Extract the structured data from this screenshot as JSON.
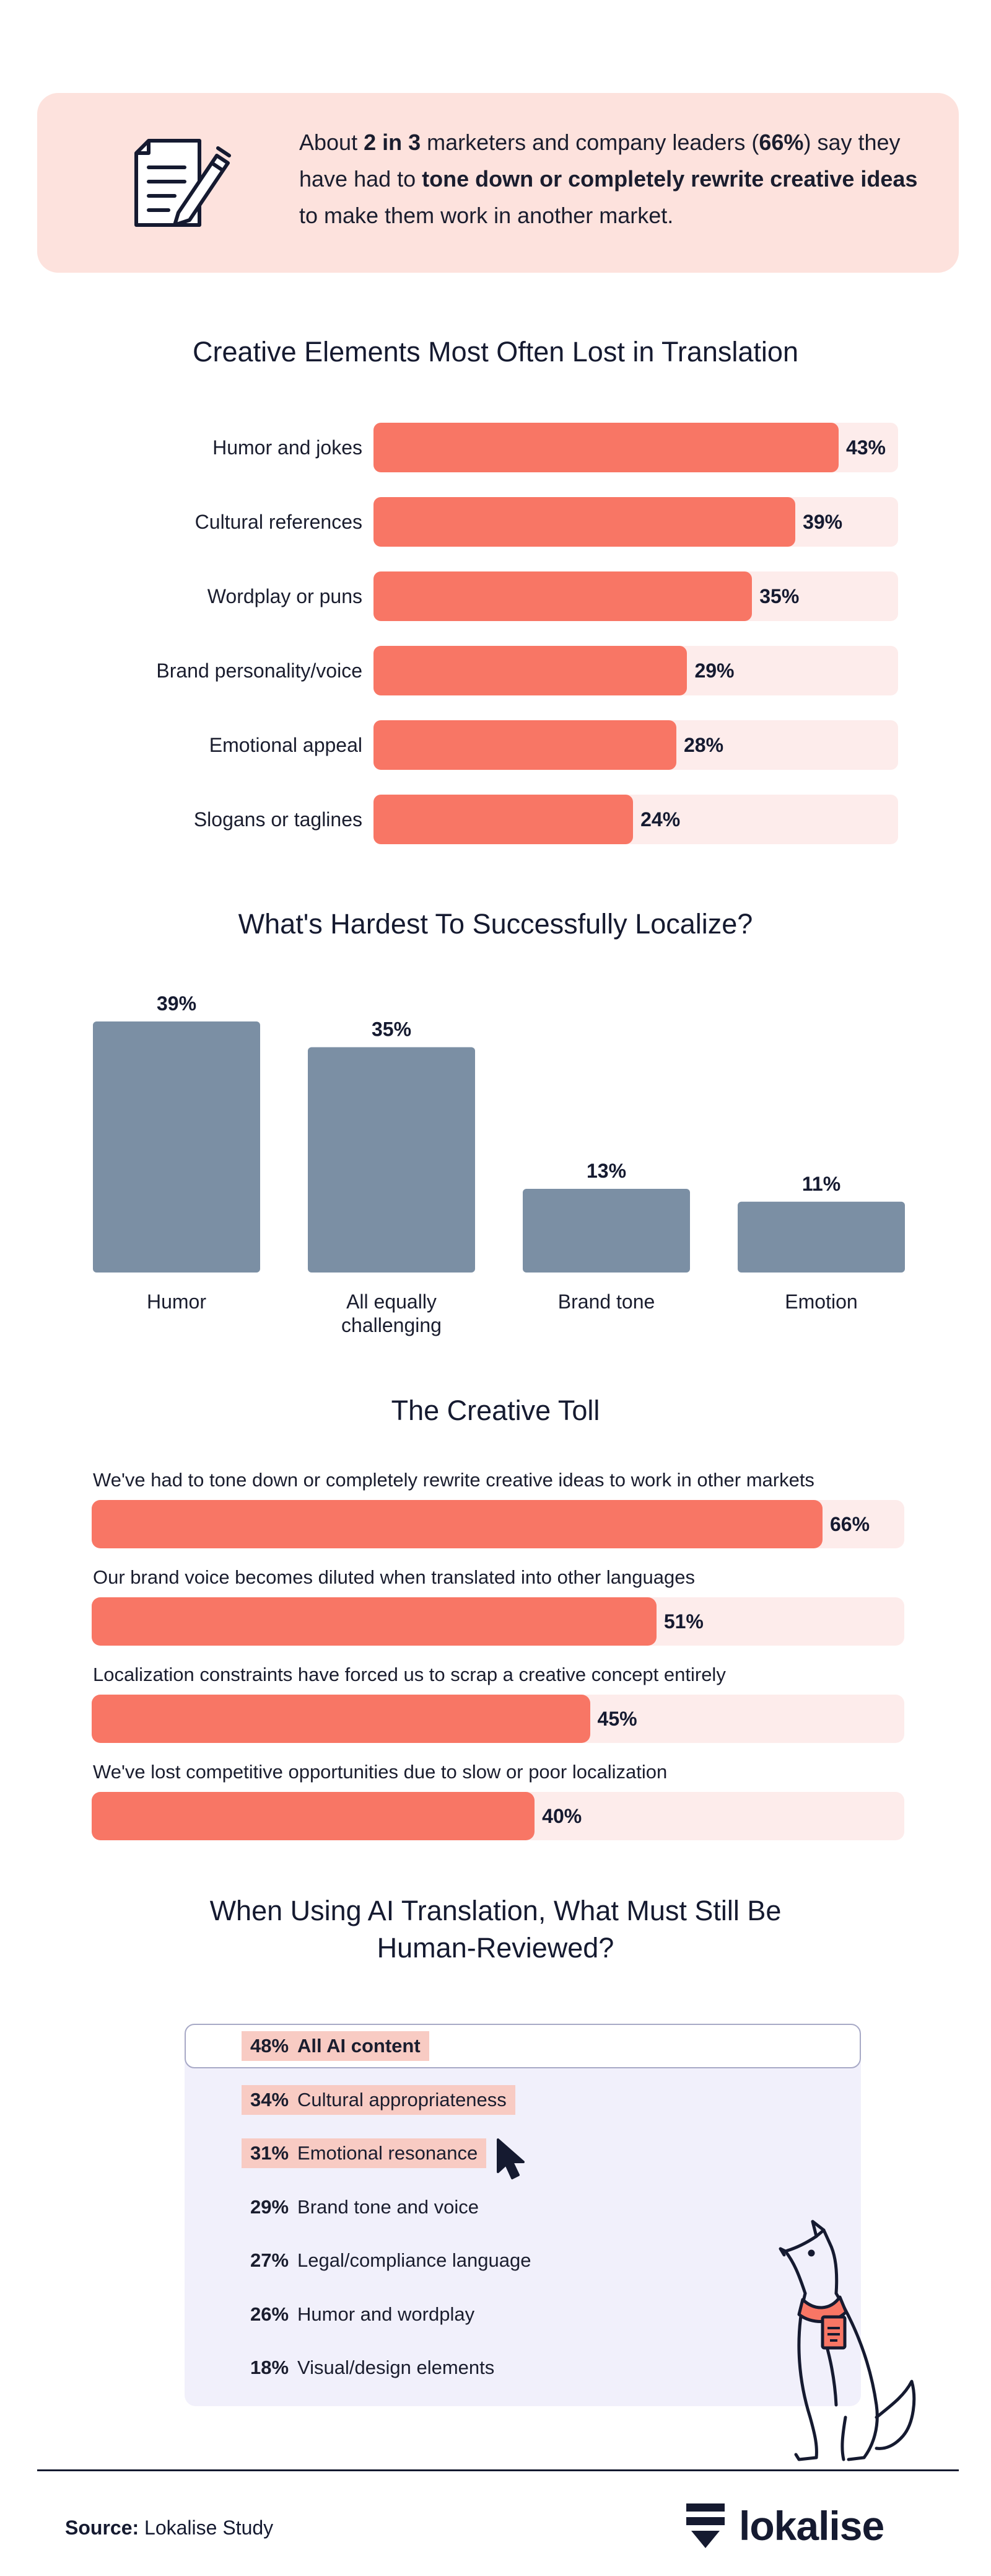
{
  "callout": {
    "t1": "About ",
    "t2": "2 in 3",
    "t3": " marketers and company leaders (",
    "t4": "66%",
    "t5": ") say they have had to ",
    "t6": "tone down or completely rewrite creative ideas",
    "t7": " to make them work in another market.",
    "icon": "document-pen-icon"
  },
  "chart_data": [
    {
      "type": "bar",
      "orientation": "horizontal",
      "title": "Creative Elements Most Often Lost in Translation",
      "categories": [
        "Humor and jokes",
        "Cultural references",
        "Wordplay or puns",
        "Brand personality/voice",
        "Emotional appeal",
        "Slogans or taglines"
      ],
      "values": [
        43,
        39,
        35,
        29,
        28,
        24
      ],
      "value_labels": [
        "43%",
        "39%",
        "35%",
        "29%",
        "28%",
        "24%"
      ],
      "xlim": [
        0,
        50
      ],
      "unit": "%"
    },
    {
      "type": "bar",
      "orientation": "vertical",
      "title": "What's Hardest To Successfully Localize?",
      "categories": [
        "Humor",
        "All equally challenging",
        "Brand tone",
        "Emotion"
      ],
      "values": [
        39,
        35,
        13,
        11
      ],
      "value_labels": [
        "39%",
        "35%",
        "13%",
        "11%"
      ],
      "ylim": [
        0,
        40
      ],
      "unit": "%"
    },
    {
      "type": "bar",
      "orientation": "horizontal",
      "title": "The Creative Toll",
      "categories": [
        "We've had to tone down or completely rewrite creative ideas to work in other markets",
        "Our brand voice becomes diluted when translated into other languages",
        "Localization constraints have forced us to scrap a creative concept entirely",
        "We've lost competitive opportunities due to slow or poor localization"
      ],
      "values": [
        66,
        51,
        45,
        40
      ],
      "value_labels": [
        "66%",
        "51%",
        "45%",
        "40%"
      ],
      "xlim": [
        0,
        73
      ],
      "unit": "%"
    },
    {
      "type": "table",
      "title": "When Using AI Translation, What Must Still Be Human-Reviewed?",
      "rows": [
        {
          "pct": "48%",
          "label": "All AI content",
          "value": 48,
          "highlight": true,
          "bold": true
        },
        {
          "pct": "34%",
          "label": "Cultural appropriateness",
          "value": 34,
          "highlight": true,
          "bold": false
        },
        {
          "pct": "31%",
          "label": "Emotional resonance",
          "value": 31,
          "highlight": true,
          "bold": false
        },
        {
          "pct": "29%",
          "label": "Brand tone and voice",
          "value": 29,
          "highlight": false,
          "bold": false
        },
        {
          "pct": "27%",
          "label": "Legal/compliance language",
          "value": 27,
          "highlight": false,
          "bold": false
        },
        {
          "pct": "26%",
          "label": "Humor and wordplay",
          "value": 26,
          "highlight": false,
          "bold": false
        },
        {
          "pct": "18%",
          "label": "Visual/design elements",
          "value": 18,
          "highlight": false,
          "bold": false
        }
      ]
    }
  ],
  "titles": {
    "s1": "Creative Elements Most Often Lost in Translation",
    "s2": "What's Hardest To Successfully Localize?",
    "s3": "The Creative Toll",
    "s4a": "When Using AI Translation, What Must Still Be",
    "s4b": "Human-Reviewed?"
  },
  "footer": {
    "source_label": "Source:",
    "source_text": " Lokalise Study",
    "logo_text": "lokalise"
  },
  "colors": {
    "bar": "#f87665",
    "track": "#fdeceb",
    "column": "#7b8fa4",
    "highlight": "#f8cbc3",
    "panel": "#f1f0fb",
    "text": "#151a30"
  },
  "icons": {
    "cursor": "cursor-arrow-icon",
    "dog": "dog-illustration",
    "logo": "lokalise-logo-icon"
  }
}
